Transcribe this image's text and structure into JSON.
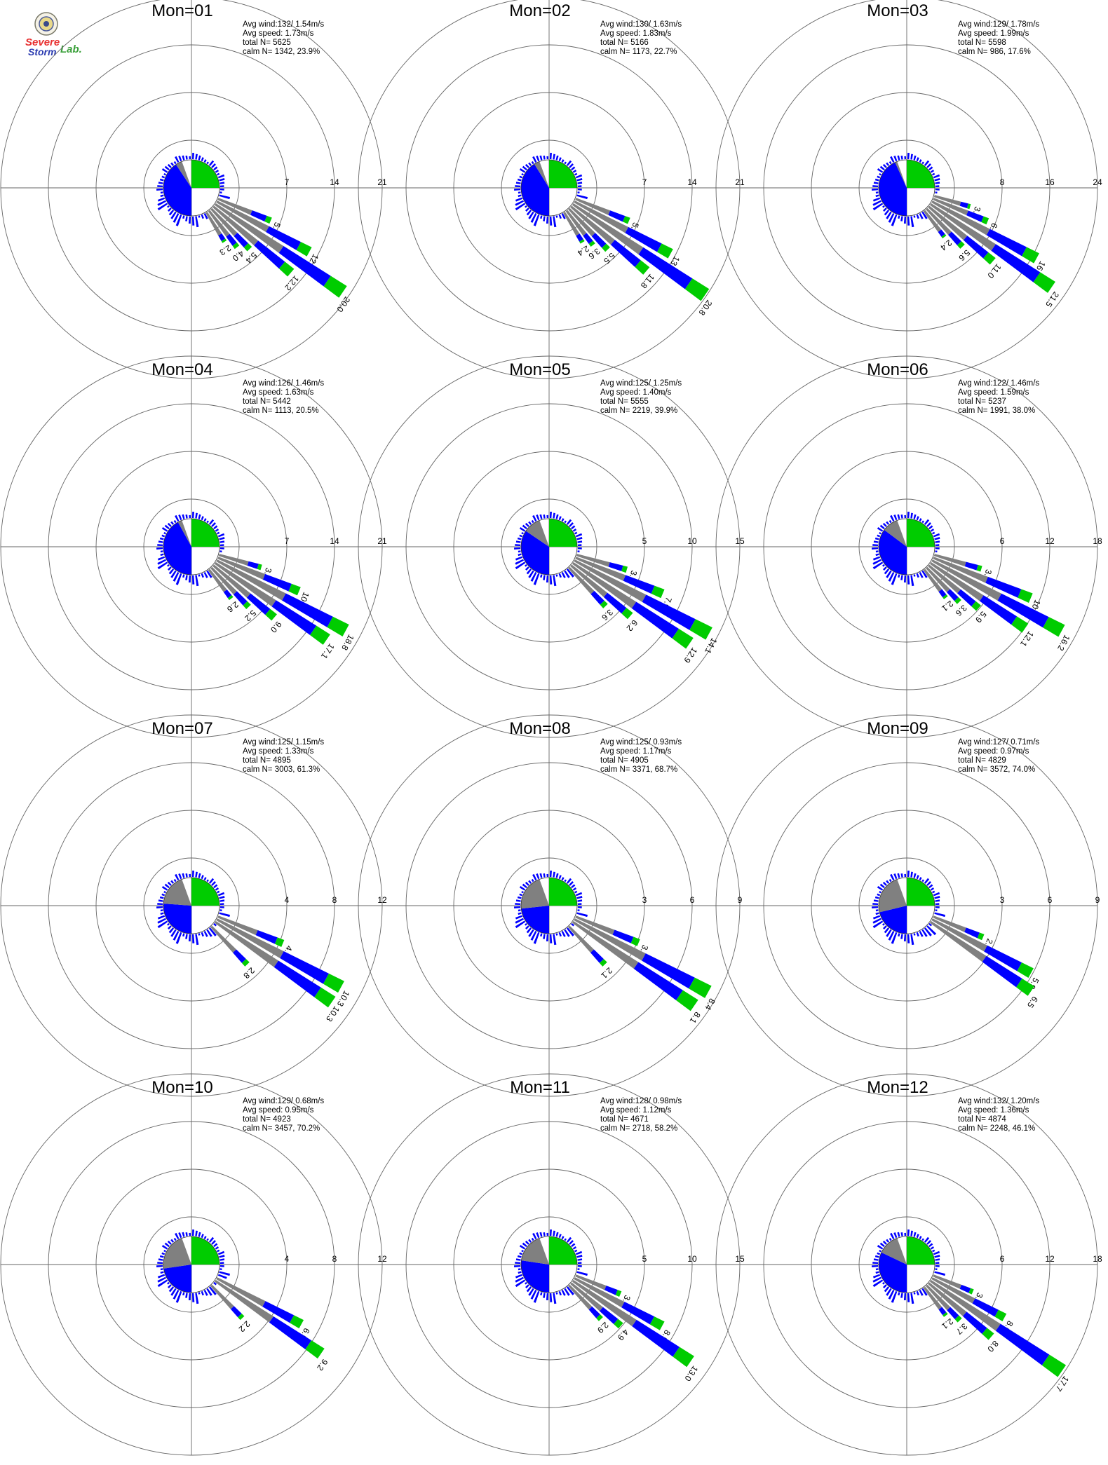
{
  "logo": {
    "text_a": "Severe",
    "text_b": "Storm",
    "text_c": "Lab."
  },
  "colors": {
    "calm_white": "#ffffff",
    "gray": "#808080",
    "blue": "#0000ff",
    "green": "#00cc00",
    "ring": "#666666"
  },
  "chart_data": [
    {
      "type": "windrose",
      "title": "Mon=01",
      "stats": {
        "avg_wind": "132/ 1.54m/s",
        "avg_speed": "1.73m/s",
        "total_n": "5625",
        "calm_n": "1342,  23.9%"
      },
      "rings": [
        "7",
        "14",
        "21"
      ],
      "rmax": 21,
      "sector_labels": [
        {
          "dir": 112.5,
          "label": "5.6"
        },
        {
          "dir": 118.5,
          "label": "12.7"
        },
        {
          "dir": 124.5,
          "label": "20.0"
        },
        {
          "dir": 130.5,
          "label": "12.2"
        },
        {
          "dir": 136.5,
          "label": "5.4"
        },
        {
          "dir": 142.5,
          "label": "4.0"
        },
        {
          "dir": 148.5,
          "label": "2.3"
        }
      ]
    },
    {
      "type": "windrose",
      "title": "Mon=02",
      "stats": {
        "avg_wind": "130/ 1.63m/s",
        "avg_speed": "1.83m/s",
        "total_n": "5166",
        "calm_n": "1173,  22.7%"
      },
      "rings": [
        "7",
        "14",
        "21"
      ],
      "rmax": 21,
      "sector_labels": [
        {
          "dir": 112.5,
          "label": "5.7"
        },
        {
          "dir": 118.5,
          "label": "13.3"
        },
        {
          "dir": 124.5,
          "label": "20.8"
        },
        {
          "dir": 130.5,
          "label": "11.8"
        },
        {
          "dir": 136.5,
          "label": "5.5"
        },
        {
          "dir": 142.5,
          "label": "3.6"
        },
        {
          "dir": 148.5,
          "label": "2.4"
        }
      ]
    },
    {
      "type": "windrose",
      "title": "Mon=03",
      "stats": {
        "avg_wind": "129/ 1.78m/s",
        "avg_speed": "1.99m/s",
        "total_n": "5598",
        "calm_n": "986,  17.6%"
      },
      "rings": [
        "8",
        "16",
        "24"
      ],
      "rmax": 24,
      "sector_labels": [
        {
          "dir": 106.5,
          "label": "3.1"
        },
        {
          "dir": 112.5,
          "label": "6.7"
        },
        {
          "dir": 118.5,
          "label": "16.8"
        },
        {
          "dir": 124.5,
          "label": "21.5"
        },
        {
          "dir": 130.5,
          "label": "11.0"
        },
        {
          "dir": 136.5,
          "label": "5.6"
        },
        {
          "dir": 142.5,
          "label": "2.4"
        }
      ]
    },
    {
      "type": "windrose",
      "title": "Mon=04",
      "stats": {
        "avg_wind": "126/ 1.46m/s",
        "avg_speed": "1.63m/s",
        "total_n": "5442",
        "calm_n": "1113,  20.5%"
      },
      "rings": [
        "7",
        "14",
        "21"
      ],
      "rmax": 21,
      "sector_labels": [
        {
          "dir": 106.5,
          "label": "3.7"
        },
        {
          "dir": 112.5,
          "label": "10.1"
        },
        {
          "dir": 118.5,
          "label": "18.8"
        },
        {
          "dir": 124.5,
          "label": "17.1"
        },
        {
          "dir": 130.5,
          "label": "9.0"
        },
        {
          "dir": 136.5,
          "label": "5.2"
        },
        {
          "dir": 142.5,
          "label": "2.6"
        }
      ]
    },
    {
      "type": "windrose",
      "title": "Mon=05",
      "stats": {
        "avg_wind": "125/ 1.25m/s",
        "avg_speed": "1.40m/s",
        "total_n": "5555",
        "calm_n": "2219,  39.9%"
      },
      "rings": [
        "5",
        "10",
        "15"
      ],
      "rmax": 15,
      "sector_labels": [
        {
          "dir": 106.5,
          "label": "3.5"
        },
        {
          "dir": 112.5,
          "label": "7.9"
        },
        {
          "dir": 118.5,
          "label": "14.1"
        },
        {
          "dir": 124.5,
          "label": "12.9"
        },
        {
          "dir": 130.5,
          "label": "6.2"
        },
        {
          "dir": 136.5,
          "label": "3.6"
        }
      ]
    },
    {
      "type": "windrose",
      "title": "Mon=06",
      "stats": {
        "avg_wind": "122/ 1.46m/s",
        "avg_speed": "1.59m/s",
        "total_n": "5237",
        "calm_n": "1991,  38.0%"
      },
      "rings": [
        "6",
        "12",
        "18"
      ],
      "rmax": 18,
      "sector_labels": [
        {
          "dir": 106.5,
          "label": "3.8"
        },
        {
          "dir": 112.5,
          "label": "10.9"
        },
        {
          "dir": 118.5,
          "label": "16.2"
        },
        {
          "dir": 124.5,
          "label": "12.1"
        },
        {
          "dir": 130.5,
          "label": "5.9"
        },
        {
          "dir": 136.5,
          "label": "3.6"
        },
        {
          "dir": 142.5,
          "label": "2.1"
        }
      ]
    },
    {
      "type": "windrose",
      "title": "Mon=07",
      "stats": {
        "avg_wind": "125/ 1.15m/s",
        "avg_speed": "1.33m/s",
        "total_n": "4895",
        "calm_n": "3003,  61.3%"
      },
      "rings": [
        "4",
        "8",
        "12"
      ],
      "rmax": 12,
      "sector_labels": [
        {
          "dir": 112.5,
          "label": "4.3"
        },
        {
          "dir": 118.5,
          "label": "10.3"
        },
        {
          "dir": 124.5,
          "label": "10.3"
        },
        {
          "dir": 136.5,
          "label": "2.8"
        }
      ]
    },
    {
      "type": "windrose",
      "title": "Mon=08",
      "stats": {
        "avg_wind": "125/ 0.93m/s",
        "avg_speed": "1.17m/s",
        "total_n": "4905",
        "calm_n": "3371,  68.7%"
      },
      "rings": [
        "3",
        "6",
        "9"
      ],
      "rmax": 9,
      "sector_labels": [
        {
          "dir": 112.5,
          "label": "3.1"
        },
        {
          "dir": 118.5,
          "label": "8.4"
        },
        {
          "dir": 124.5,
          "label": "8.1"
        },
        {
          "dir": 136.5,
          "label": "2.1"
        }
      ]
    },
    {
      "type": "windrose",
      "title": "Mon=09",
      "stats": {
        "avg_wind": "127/ 0.71m/s",
        "avg_speed": "0.97m/s",
        "total_n": "4829",
        "calm_n": "3572,  74.0%"
      },
      "rings": [
        "3",
        "6",
        "9"
      ],
      "rmax": 9,
      "sector_labels": [
        {
          "dir": 112.5,
          "label": "2.2"
        },
        {
          "dir": 118.5,
          "label": "5.9"
        },
        {
          "dir": 124.5,
          "label": "6.5"
        }
      ]
    },
    {
      "type": "windrose",
      "title": "Mon=10",
      "stats": {
        "avg_wind": "129/ 0.68m/s",
        "avg_speed": "0.95m/s",
        "total_n": "4923",
        "calm_n": "3457,  70.2%"
      },
      "rings": [
        "4",
        "8",
        "12"
      ],
      "rmax": 12,
      "sector_labels": [
        {
          "dir": 118.5,
          "label": "6.5"
        },
        {
          "dir": 124.5,
          "label": "9.2"
        },
        {
          "dir": 136.5,
          "label": "2.2"
        }
      ]
    },
    {
      "type": "windrose",
      "title": "Mon=11",
      "stats": {
        "avg_wind": "128/ 0.98m/s",
        "avg_speed": "1.12m/s",
        "total_n": "4671",
        "calm_n": "2718,  58.2%"
      },
      "rings": [
        "5",
        "10",
        "15"
      ],
      "rmax": 15,
      "sector_labels": [
        {
          "dir": 112.5,
          "label": "3.1"
        },
        {
          "dir": 118.5,
          "label": "8.5"
        },
        {
          "dir": 124.5,
          "label": "13.0"
        },
        {
          "dir": 130.5,
          "label": "4.9"
        },
        {
          "dir": 136.5,
          "label": "2.9"
        }
      ]
    },
    {
      "type": "windrose",
      "title": "Mon=12",
      "stats": {
        "avg_wind": "132/ 1.20m/s",
        "avg_speed": "1.36m/s",
        "total_n": "4874",
        "calm_n": "2248,  46.1%"
      },
      "rings": [
        "6",
        "12",
        "18"
      ],
      "rmax": 18,
      "sector_labels": [
        {
          "dir": 112.5,
          "label": "3.0"
        },
        {
          "dir": 118.5,
          "label": "8.0"
        },
        {
          "dir": 124.5,
          "label": "17.7"
        },
        {
          "dir": 130.5,
          "label": "8.0"
        },
        {
          "dir": 136.5,
          "label": "3.7"
        },
        {
          "dir": 142.5,
          "label": "2.1"
        }
      ]
    }
  ]
}
